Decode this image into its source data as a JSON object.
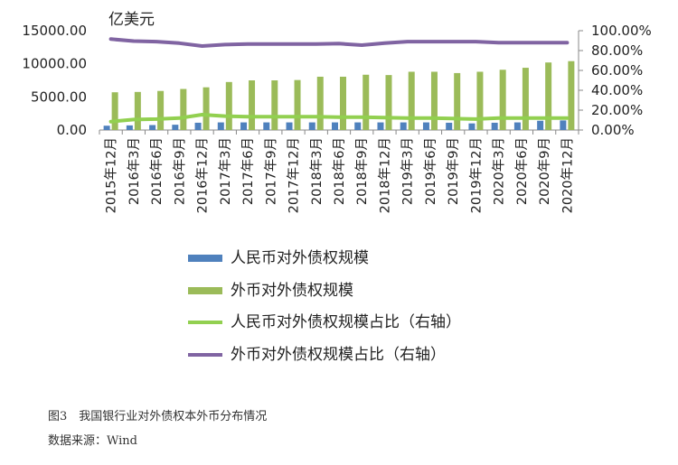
{
  "chart_data": {
    "type": "bar",
    "unit_label": "亿美元",
    "categories": [
      "2015年12月",
      "2016年3月",
      "2016年6月",
      "2016年9月",
      "2016年12月",
      "2017年3月",
      "2017年6月",
      "2017年9月",
      "2017年12月",
      "2018年3月",
      "2018年6月",
      "2018年9月",
      "2018年12月",
      "2019年3月",
      "2019年6月",
      "2019年9月",
      "2019年12月",
      "2020年3月",
      "2020年6月",
      "2020年9月",
      "2020年12月"
    ],
    "y_left": {
      "min": 0,
      "max": 15000,
      "ticks": [
        "0.00",
        "5000.00",
        "10000.00",
        "15000.00"
      ]
    },
    "y_right": {
      "min": 0,
      "max": 100,
      "ticks": [
        "0.00%",
        "20.00%",
        "40.00%",
        "60.00%",
        "80.00%",
        "100.00%"
      ]
    },
    "series": [
      {
        "name": "人民币对外债权规模",
        "type": "bar",
        "axis": "left",
        "color": "#4F81BD",
        "values": [
          650,
          700,
          750,
          800,
          1100,
          1150,
          1150,
          1150,
          1150,
          1150,
          1150,
          1150,
          1150,
          1150,
          1150,
          1100,
          1000,
          1100,
          1150,
          1400,
          1450
        ]
      },
      {
        "name": "外币对外债权规模",
        "type": "bar",
        "axis": "left",
        "color": "#9BBB59",
        "values": [
          5700,
          5750,
          5900,
          6200,
          6450,
          7250,
          7500,
          7500,
          7550,
          8050,
          8050,
          8350,
          8300,
          8800,
          8800,
          8600,
          8800,
          9100,
          9400,
          10200,
          10400
        ]
      },
      {
        "name": "人民币对外债权规模占比（右轴）",
        "type": "line",
        "axis": "right",
        "color": "#92D050",
        "values": [
          8.5,
          10.5,
          11,
          12,
          15.5,
          14,
          13.5,
          13.5,
          13.5,
          13.5,
          13,
          13,
          12.5,
          12,
          12,
          11.5,
          11,
          12,
          12,
          12,
          12
        ]
      },
      {
        "name": "外币对外债权规模占比（右轴）",
        "type": "line",
        "axis": "right",
        "color": "#8064A2",
        "values": [
          91.5,
          89.5,
          89,
          87.5,
          84.5,
          86,
          86.5,
          86.5,
          86.5,
          86.5,
          87,
          85.5,
          87.5,
          89,
          89,
          89,
          89,
          88,
          88,
          88,
          88
        ]
      }
    ]
  },
  "caption": {
    "title": "图3　我国银行业对外债权本外币分布情况",
    "source": "数据来源：Wind"
  }
}
